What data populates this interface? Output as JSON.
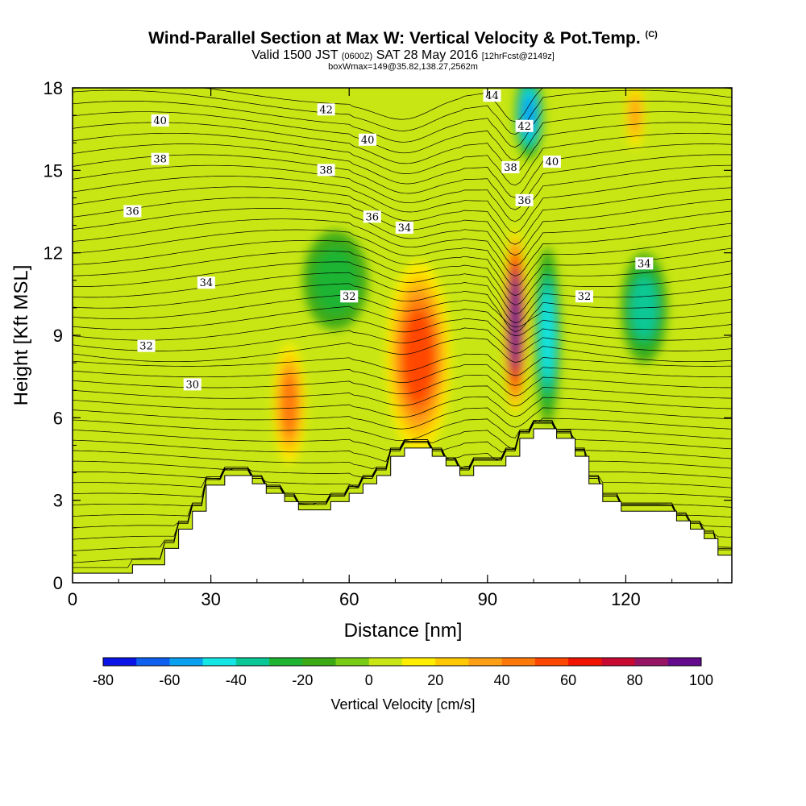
{
  "chart_data": {
    "type": "heatmap",
    "title": "Wind-Parallel Section at Max W: Vertical Velocity & Pot.Temp.",
    "title_suffix": "(C)",
    "subtitle_parts": [
      "Valid 1500 JST",
      "(0600Z)",
      "SAT 28 May 2016",
      "[12hrFcst@2149z]"
    ],
    "subtitle2": "boxWmax=149@35.82,138.27,2562m",
    "xlabel": "Distance [nm]",
    "ylabel": "Height [Kft MSL]",
    "xlim": [
      0,
      143
    ],
    "ylim": [
      0,
      18
    ],
    "x_ticks": [
      0,
      30,
      60,
      90,
      120
    ],
    "y_ticks": [
      0,
      3,
      6,
      9,
      12,
      15,
      18
    ],
    "colorbar": {
      "label": "Vertical Velocity [cm/s]",
      "levels": [
        -80,
        -70,
        -60,
        -50,
        -40,
        -30,
        -20,
        -10,
        0,
        10,
        20,
        30,
        40,
        50,
        60,
        70,
        80,
        90,
        100
      ],
      "tick_labels": [
        "-80",
        "-60",
        "-40",
        "-20",
        "0",
        "20",
        "40",
        "60",
        "80",
        "100"
      ],
      "colors": [
        "#0a14e6",
        "#0f5ff0",
        "#0aa0f0",
        "#14e6e6",
        "#0ac896",
        "#1eb432",
        "#3caa14",
        "#78cc14",
        "#c8e614",
        "#ffee00",
        "#ffc800",
        "#ffa014",
        "#ff780a",
        "#ff4600",
        "#f01400",
        "#c80a32",
        "#961464",
        "#640a8c"
      ]
    },
    "terrain": [
      [
        0,
        0.35
      ],
      [
        13,
        0.35
      ],
      [
        13,
        0.65
      ],
      [
        20,
        0.65
      ],
      [
        20,
        1.25
      ],
      [
        23,
        1.25
      ],
      [
        23,
        1.95
      ],
      [
        26,
        1.95
      ],
      [
        26,
        2.6
      ],
      [
        29,
        2.6
      ],
      [
        29,
        3.55
      ],
      [
        33,
        3.55
      ],
      [
        33,
        3.9
      ],
      [
        39,
        3.9
      ],
      [
        39,
        3.6
      ],
      [
        42,
        3.6
      ],
      [
        42,
        3.25
      ],
      [
        46,
        3.25
      ],
      [
        46,
        2.95
      ],
      [
        49,
        2.95
      ],
      [
        49,
        2.65
      ],
      [
        56,
        2.65
      ],
      [
        56,
        2.95
      ],
      [
        60,
        2.95
      ],
      [
        60,
        3.25
      ],
      [
        63,
        3.25
      ],
      [
        63,
        3.6
      ],
      [
        66,
        3.6
      ],
      [
        66,
        3.9
      ],
      [
        69,
        3.9
      ],
      [
        69,
        4.6
      ],
      [
        72,
        4.6
      ],
      [
        72,
        4.9
      ],
      [
        78,
        4.9
      ],
      [
        78,
        4.6
      ],
      [
        81,
        4.6
      ],
      [
        81,
        4.25
      ],
      [
        84,
        4.25
      ],
      [
        84,
        3.9
      ],
      [
        87,
        3.9
      ],
      [
        87,
        4.25
      ],
      [
        94,
        4.25
      ],
      [
        94,
        4.6
      ],
      [
        97,
        4.6
      ],
      [
        97,
        5.25
      ],
      [
        100,
        5.25
      ],
      [
        100,
        5.6
      ],
      [
        105,
        5.6
      ],
      [
        105,
        5.25
      ],
      [
        109,
        5.25
      ],
      [
        109,
        4.6
      ],
      [
        112,
        4.6
      ],
      [
        112,
        3.6
      ],
      [
        115,
        3.6
      ],
      [
        115,
        2.95
      ],
      [
        119,
        2.95
      ],
      [
        119,
        2.6
      ],
      [
        131,
        2.6
      ],
      [
        131,
        2.25
      ],
      [
        134,
        2.25
      ],
      [
        134,
        1.95
      ],
      [
        137,
        1.95
      ],
      [
        137,
        1.6
      ],
      [
        140,
        1.6
      ],
      [
        140,
        1.0
      ],
      [
        143,
        1.0
      ]
    ],
    "vertical_velocity_features": [
      {
        "x": 47,
        "y": 6.5,
        "rx": 3.5,
        "ry": 2.2,
        "w": 40
      },
      {
        "x": 75,
        "y": 8.2,
        "rx": 7.0,
        "ry": 3.5,
        "w": 50
      },
      {
        "x": 96,
        "y": 9.5,
        "rx": 2.4,
        "ry": 3.4,
        "w": 100
      },
      {
        "x": 103,
        "y": 9.0,
        "rx": 2.8,
        "ry": 3.2,
        "w": -40
      },
      {
        "x": 99,
        "y": 17.0,
        "rx": 3.0,
        "ry": 1.6,
        "w": -45
      },
      {
        "x": 124,
        "y": 10.0,
        "rx": 5.0,
        "ry": 2.0,
        "w": -30
      },
      {
        "x": 57,
        "y": 11.0,
        "rx": 7.0,
        "ry": 1.8,
        "w": -20
      },
      {
        "x": 122,
        "y": 17.0,
        "rx": 2.0,
        "ry": 1.2,
        "w": 30
      }
    ],
    "pot_temp_labels": [
      {
        "value": "44",
        "x": 91,
        "y": 17.7
      },
      {
        "value": "42",
        "x": 55,
        "y": 17.2
      },
      {
        "value": "42",
        "x": 98,
        "y": 16.6
      },
      {
        "value": "40",
        "x": 19,
        "y": 16.8
      },
      {
        "value": "40",
        "x": 64,
        "y": 16.1
      },
      {
        "value": "40",
        "x": 104,
        "y": 15.3
      },
      {
        "value": "38",
        "x": 19,
        "y": 15.4
      },
      {
        "value": "38",
        "x": 55,
        "y": 15.0
      },
      {
        "value": "38",
        "x": 95,
        "y": 15.1
      },
      {
        "value": "36",
        "x": 13,
        "y": 13.5
      },
      {
        "value": "36",
        "x": 65,
        "y": 13.3
      },
      {
        "value": "36",
        "x": 98,
        "y": 13.9
      },
      {
        "value": "34",
        "x": 29,
        "y": 10.9
      },
      {
        "value": "34",
        "x": 72,
        "y": 12.9
      },
      {
        "value": "34",
        "x": 124,
        "y": 11.6
      },
      {
        "value": "32",
        "x": 16,
        "y": 8.6
      },
      {
        "value": "32",
        "x": 60,
        "y": 10.4
      },
      {
        "value": "32",
        "x": 111,
        "y": 10.4
      },
      {
        "value": "30",
        "x": 26,
        "y": 7.2
      }
    ]
  }
}
